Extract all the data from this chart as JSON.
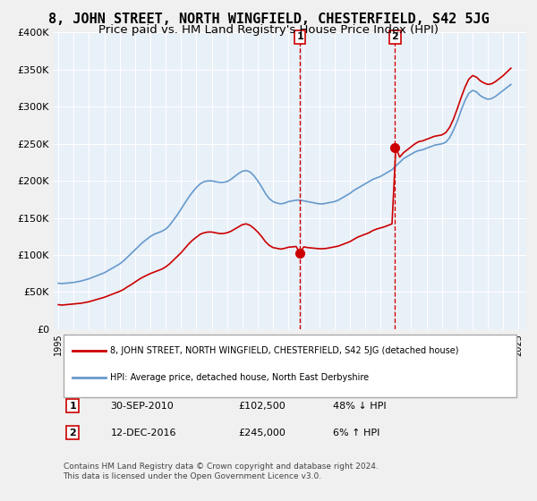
{
  "title": "8, JOHN STREET, NORTH WINGFIELD, CHESTERFIELD, S42 5JG",
  "subtitle": "Price paid vs. HM Land Registry's House Price Index (HPI)",
  "title_fontsize": 11,
  "subtitle_fontsize": 9.5,
  "ylim": [
    0,
    400000
  ],
  "yticks": [
    0,
    50000,
    100000,
    150000,
    200000,
    250000,
    300000,
    350000,
    400000
  ],
  "ytick_labels": [
    "£0",
    "£50K",
    "£100K",
    "£150K",
    "£200K",
    "£250K",
    "£300K",
    "£350K",
    "£400K"
  ],
  "xlim_start": 1995.0,
  "xlim_end": 2025.5,
  "xticks": [
    1995,
    1996,
    1997,
    1998,
    1999,
    2000,
    2001,
    2002,
    2003,
    2004,
    2005,
    2006,
    2007,
    2008,
    2009,
    2010,
    2011,
    2012,
    2013,
    2014,
    2015,
    2016,
    2017,
    2018,
    2019,
    2020,
    2021,
    2022,
    2023,
    2024,
    2025
  ],
  "bg_color": "#e8f0f8",
  "plot_bg_color": "#e8f0f8",
  "grid_color": "#ffffff",
  "sale1_x": 2010.75,
  "sale1_y": 102500,
  "sale2_x": 2016.95,
  "sale2_y": 245000,
  "sale1_label": "1",
  "sale2_label": "2",
  "red_line_color": "#cc0000",
  "blue_line_color": "#6699cc",
  "sale_dot_color": "#cc0000",
  "vline_color": "#cc0000",
  "legend_line1": "8, JOHN STREET, NORTH WINGFIELD, CHESTERFIELD, S42 5JG (detached house)",
  "legend_line2": "HPI: Average price, detached house, North East Derbyshire",
  "table_row1": [
    "1",
    "30-SEP-2010",
    "£102,500",
    "48% ↓ HPI"
  ],
  "table_row2": [
    "2",
    "12-DEC-2016",
    "£245,000",
    "6% ↑ HPI"
  ],
  "footnote": "Contains HM Land Registry data © Crown copyright and database right 2024.\nThis data is licensed under the Open Government Licence v3.0.",
  "hpi_x": [
    1995.0,
    1995.25,
    1995.5,
    1995.75,
    1996.0,
    1996.25,
    1996.5,
    1996.75,
    1997.0,
    1997.25,
    1997.5,
    1997.75,
    1998.0,
    1998.25,
    1998.5,
    1998.75,
    1999.0,
    1999.25,
    1999.5,
    1999.75,
    2000.0,
    2000.25,
    2000.5,
    2000.75,
    2001.0,
    2001.25,
    2001.5,
    2001.75,
    2002.0,
    2002.25,
    2002.5,
    2002.75,
    2003.0,
    2003.25,
    2003.5,
    2003.75,
    2004.0,
    2004.25,
    2004.5,
    2004.75,
    2005.0,
    2005.25,
    2005.5,
    2005.75,
    2006.0,
    2006.25,
    2006.5,
    2006.75,
    2007.0,
    2007.25,
    2007.5,
    2007.75,
    2008.0,
    2008.25,
    2008.5,
    2008.75,
    2009.0,
    2009.25,
    2009.5,
    2009.75,
    2010.0,
    2010.25,
    2010.5,
    2010.75,
    2011.0,
    2011.25,
    2011.5,
    2011.75,
    2012.0,
    2012.25,
    2012.5,
    2012.75,
    2013.0,
    2013.25,
    2013.5,
    2013.75,
    2014.0,
    2014.25,
    2014.5,
    2014.75,
    2015.0,
    2015.25,
    2015.5,
    2015.75,
    2016.0,
    2016.25,
    2016.5,
    2016.75,
    2017.0,
    2017.25,
    2017.5,
    2017.75,
    2018.0,
    2018.25,
    2018.5,
    2018.75,
    2019.0,
    2019.25,
    2019.5,
    2019.75,
    2020.0,
    2020.25,
    2020.5,
    2020.75,
    2021.0,
    2021.25,
    2021.5,
    2021.75,
    2022.0,
    2022.25,
    2022.5,
    2022.75,
    2023.0,
    2023.25,
    2023.5,
    2023.75,
    2024.0,
    2024.25,
    2024.5
  ],
  "hpi_y": [
    62000,
    61500,
    62000,
    62500,
    63000,
    64000,
    65000,
    66500,
    68000,
    70000,
    72000,
    74000,
    76000,
    79000,
    82000,
    85000,
    88000,
    92000,
    97000,
    102000,
    107000,
    112000,
    117000,
    121000,
    125000,
    128000,
    130000,
    132000,
    135000,
    140000,
    147000,
    154000,
    162000,
    170000,
    178000,
    185000,
    191000,
    196000,
    199000,
    200000,
    200000,
    199000,
    198000,
    198000,
    199000,
    202000,
    206000,
    210000,
    213000,
    214000,
    212000,
    207000,
    200000,
    192000,
    183000,
    176000,
    172000,
    170000,
    169000,
    170000,
    172000,
    173000,
    174000,
    174000,
    173000,
    172000,
    171000,
    170000,
    169000,
    169000,
    170000,
    171000,
    172000,
    174000,
    177000,
    180000,
    183000,
    187000,
    190000,
    193000,
    196000,
    199000,
    202000,
    204000,
    206000,
    209000,
    212000,
    215000,
    220000,
    225000,
    230000,
    233000,
    236000,
    239000,
    241000,
    242000,
    244000,
    246000,
    248000,
    249000,
    250000,
    252000,
    258000,
    268000,
    280000,
    295000,
    308000,
    318000,
    322000,
    320000,
    315000,
    312000,
    310000,
    311000,
    314000,
    318000,
    322000,
    326000,
    330000
  ],
  "red_x": [
    1995.0,
    1995.25,
    1995.5,
    1995.75,
    1996.0,
    1996.25,
    1996.5,
    1996.75,
    1997.0,
    1997.25,
    1997.5,
    1997.75,
    1998.0,
    1998.25,
    1998.5,
    1998.75,
    1999.0,
    1999.25,
    1999.5,
    1999.75,
    2000.0,
    2000.25,
    2000.5,
    2000.75,
    2001.0,
    2001.25,
    2001.5,
    2001.75,
    2002.0,
    2002.25,
    2002.5,
    2002.75,
    2003.0,
    2003.25,
    2003.5,
    2003.75,
    2004.0,
    2004.25,
    2004.5,
    2004.75,
    2005.0,
    2005.25,
    2005.5,
    2005.75,
    2006.0,
    2006.25,
    2006.5,
    2006.75,
    2007.0,
    2007.25,
    2007.5,
    2007.75,
    2008.0,
    2008.25,
    2008.5,
    2008.75,
    2009.0,
    2009.25,
    2009.5,
    2009.75,
    2010.0,
    2010.25,
    2010.5,
    2010.75,
    2011.0,
    2011.25,
    2011.5,
    2011.75,
    2012.0,
    2012.25,
    2012.5,
    2012.75,
    2013.0,
    2013.25,
    2013.5,
    2013.75,
    2014.0,
    2014.25,
    2014.5,
    2014.75,
    2015.0,
    2015.25,
    2015.5,
    2015.75,
    2016.0,
    2016.25,
    2016.5,
    2016.75,
    2017.0,
    2017.25,
    2017.5,
    2017.75,
    2018.0,
    2018.25,
    2018.5,
    2018.75,
    2019.0,
    2019.25,
    2019.5,
    2019.75,
    2020.0,
    2020.25,
    2020.5,
    2020.75,
    2021.0,
    2021.25,
    2021.5,
    2021.75,
    2022.0,
    2022.25,
    2022.5,
    2022.75,
    2023.0,
    2023.25,
    2023.5,
    2023.75,
    2024.0,
    2024.25,
    2024.5
  ],
  "red_y": [
    33000,
    32500,
    33000,
    33500,
    34000,
    34500,
    35000,
    36000,
    37000,
    38500,
    40000,
    41500,
    43000,
    45000,
    47000,
    49000,
    51000,
    53500,
    57000,
    60000,
    63500,
    67000,
    70000,
    72500,
    75000,
    77000,
    79000,
    81000,
    84000,
    88000,
    93000,
    98000,
    103000,
    109000,
    115000,
    120000,
    124000,
    128000,
    130000,
    131000,
    131000,
    130000,
    129000,
    129000,
    130000,
    132000,
    135000,
    138000,
    141000,
    142000,
    140000,
    136000,
    131000,
    125000,
    118000,
    113000,
    110000,
    109000,
    108000,
    109000,
    110500,
    111000,
    111500,
    102500,
    111000,
    110000,
    109500,
    109000,
    108500,
    108500,
    109000,
    110000,
    111000,
    112000,
    114000,
    116000,
    118000,
    121000,
    124000,
    126000,
    128000,
    130000,
    133000,
    135000,
    136500,
    138000,
    140000,
    142000,
    245000,
    232000,
    238000,
    242000,
    246000,
    250000,
    253000,
    254000,
    256000,
    258000,
    260000,
    261000,
    262000,
    265000,
    272000,
    283000,
    297000,
    312000,
    326000,
    337000,
    342000,
    340000,
    335000,
    332000,
    330000,
    331000,
    334000,
    338000,
    342000,
    347000,
    352000
  ]
}
